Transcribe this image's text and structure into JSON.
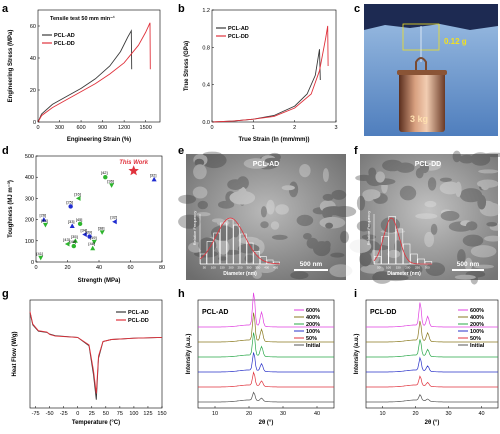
{
  "figure": {
    "panel_labels": [
      "a",
      "b",
      "c",
      "d",
      "e",
      "f",
      "g",
      "h",
      "i"
    ]
  },
  "chart_data": [
    {
      "panel": "a",
      "type": "line",
      "title": "Tensile test 50 mm min⁻¹",
      "xlabel": "Engineering Strain (%)",
      "ylabel": "Engineering Stress (MPa)",
      "xlim": [
        0,
        1700
      ],
      "ylim": [
        0,
        70
      ],
      "xticks": [
        "0",
        "300",
        "600",
        "900",
        "1200",
        "1500"
      ],
      "yticks": [
        "0",
        "20",
        "40",
        "60"
      ],
      "legend": "top-left",
      "series": [
        {
          "name": "PCL-AD",
          "color": "#3a3a3a",
          "x": [
            0,
            50,
            200,
            400,
            600,
            800,
            1000,
            1150,
            1250,
            1300,
            1305
          ],
          "y": [
            0,
            5,
            11,
            16,
            21,
            27,
            35,
            44,
            53,
            57,
            33
          ]
        },
        {
          "name": "PCL-DD",
          "color": "#e0323c",
          "x": [
            0,
            50,
            200,
            400,
            600,
            800,
            1000,
            1200,
            1400,
            1500,
            1560,
            1565
          ],
          "y": [
            0,
            4,
            9,
            14,
            19,
            24,
            30,
            37,
            48,
            56,
            62,
            33
          ]
        }
      ]
    },
    {
      "panel": "b",
      "type": "line",
      "xlabel": "True Strain (ln (mm/mm))",
      "ylabel": "True Stress (GPa)",
      "xlim": [
        0,
        3
      ],
      "ylim": [
        0,
        1.2
      ],
      "xticks": [
        "0",
        "1",
        "2",
        "3"
      ],
      "yticks": [
        "0.0",
        "0.4",
        "0.8",
        "1.2"
      ],
      "legend": "top-left",
      "series": [
        {
          "name": "PCL-AD",
          "color": "#3a3a3a",
          "x": [
            0,
            0.5,
            1,
            1.5,
            2,
            2.3,
            2.5,
            2.6,
            2.62
          ],
          "y": [
            0,
            0.01,
            0.03,
            0.07,
            0.17,
            0.3,
            0.5,
            0.78,
            0.45
          ]
        },
        {
          "name": "PCL-DD",
          "color": "#e0323c",
          "x": [
            0,
            0.5,
            1,
            1.5,
            2,
            2.4,
            2.6,
            2.75,
            2.8,
            2.81
          ],
          "y": [
            0,
            0.01,
            0.03,
            0.06,
            0.15,
            0.3,
            0.55,
            0.9,
            1.03,
            0.6
          ]
        }
      ]
    },
    {
      "panel": "d",
      "type": "scatter",
      "xlabel": "Strength (MPa)",
      "ylabel": "Toughness (MJ m⁻³)",
      "xlim": [
        0,
        80
      ],
      "ylim": [
        0,
        500
      ],
      "xticks": [
        "0",
        "20",
        "40",
        "60",
        "80"
      ],
      "yticks": [
        "0",
        "100",
        "200",
        "300",
        "400",
        "500"
      ],
      "highlight": {
        "label": "This Work",
        "x": 62,
        "y": 430,
        "color": "#e0323c"
      },
      "points": [
        {
          "x": 44,
          "y": 400,
          "ref": "[42]",
          "color": "#2db52d"
        },
        {
          "x": 75,
          "y": 390,
          "ref": "[32]",
          "color": "#1f2bd0"
        },
        {
          "x": 48,
          "y": 362,
          "ref": "[36]",
          "color": "#2db52d"
        },
        {
          "x": 27,
          "y": 300,
          "ref": "[16]",
          "color": "#2db52d"
        },
        {
          "x": 22,
          "y": 262,
          "ref": "[25]",
          "color": "#1f2bd0"
        },
        {
          "x": 5,
          "y": 200,
          "ref": "[26]",
          "color": "#1f2bd0"
        },
        {
          "x": 6,
          "y": 175,
          "ref": "[44]",
          "color": "#2db52d"
        },
        {
          "x": 50,
          "y": 190,
          "ref": "[32]",
          "color": "#1f2bd0"
        },
        {
          "x": 28,
          "y": 180,
          "ref": "[45]",
          "color": "#2db52d"
        },
        {
          "x": 23,
          "y": 170,
          "ref": "[33]",
          "color": "#1f2bd0"
        },
        {
          "x": 42,
          "y": 140,
          "ref": "[38]",
          "color": "#2db52d"
        },
        {
          "x": 31,
          "y": 130,
          "ref": "[34]",
          "color": "#1f2bd0"
        },
        {
          "x": 34,
          "y": 120,
          "ref": "[39]",
          "color": "#1f2bd0"
        },
        {
          "x": 25,
          "y": 100,
          "ref": "[35]",
          "color": "#2db52d"
        },
        {
          "x": 37,
          "y": 95,
          "ref": "[19]",
          "color": "#2db52d"
        },
        {
          "x": 20,
          "y": 85,
          "ref": "[43]",
          "color": "#2db52d"
        },
        {
          "x": 24,
          "y": 75,
          "ref": "[48]",
          "color": "#2db52d"
        },
        {
          "x": 36,
          "y": 65,
          "ref": "[48]",
          "color": "#2db52d"
        },
        {
          "x": 3,
          "y": 20,
          "ref": "[41]",
          "color": "#2db52d"
        }
      ]
    },
    {
      "panel": "g",
      "type": "line",
      "xlabel": "Temperature (°C)",
      "ylabel": "Heat Flow (W/g)",
      "xlim": [
        -85,
        150
      ],
      "xticks": [
        "-75",
        "-50",
        "-25",
        "0",
        "25",
        "50",
        "75",
        "100",
        "125",
        "150"
      ],
      "legend": "top-right",
      "series": [
        {
          "name": "PCL-AD",
          "color": "#3a3a3a",
          "x": [
            -85,
            -80,
            -70,
            -55,
            -50,
            -40,
            0,
            20,
            28,
            33,
            37,
            45,
            60,
            100,
            150
          ],
          "y": [
            0.9,
            0.6,
            0.45,
            0.42,
            0.38,
            0.34,
            0.3,
            0.1,
            -0.6,
            -1.2,
            -0.2,
            0.2,
            0.25,
            0.28,
            0.3
          ]
        },
        {
          "name": "PCL-DD",
          "color": "#e0323c",
          "x": [
            -85,
            -80,
            -70,
            -55,
            -50,
            -40,
            0,
            20,
            28,
            33,
            37,
            45,
            60,
            100,
            150
          ],
          "y": [
            0.92,
            0.62,
            0.46,
            0.43,
            0.37,
            0.33,
            0.3,
            0.12,
            -0.5,
            -1.05,
            -0.15,
            0.2,
            0.25,
            0.28,
            0.3
          ]
        }
      ]
    },
    {
      "panel": "h",
      "type": "line",
      "title": "PCL-AD",
      "xlabel": "2θ (°)",
      "ylabel": "Intensity (a.u.)",
      "xlim": [
        5,
        45
      ],
      "xticks": [
        "10",
        "20",
        "30",
        "40"
      ],
      "legend": "top-right",
      "series": [
        {
          "name": "Initial",
          "color": "#555555"
        },
        {
          "name": "50%",
          "color": "#e0323c"
        },
        {
          "name": "100%",
          "color": "#2a32c8"
        },
        {
          "name": "200%",
          "color": "#2aa84a"
        },
        {
          "name": "400%",
          "color": "#8a7a20"
        },
        {
          "name": "600%",
          "color": "#e040e0"
        }
      ],
      "peaks_2theta": [
        21.4,
        23.7
      ]
    },
    {
      "panel": "i",
      "type": "line",
      "title": "PCL-DD",
      "xlabel": "2θ (°)",
      "ylabel": "Intensity (a.u.)",
      "xlim": [
        5,
        45
      ],
      "xticks": [
        "10",
        "20",
        "30",
        "40"
      ],
      "legend": "top-right",
      "series": [
        {
          "name": "Initial",
          "color": "#555555"
        },
        {
          "name": "50%",
          "color": "#e0323c"
        },
        {
          "name": "100%",
          "color": "#2a32c8"
        },
        {
          "name": "200%",
          "color": "#2aa84a"
        },
        {
          "name": "400%",
          "color": "#8a7a20"
        },
        {
          "name": "600%",
          "color": "#e040e0"
        }
      ],
      "peaks_2theta": [
        21.4,
        23.7
      ]
    }
  ],
  "images": {
    "c": {
      "mass_label": "0.12 g",
      "load_label": "3 kg"
    },
    "e": {
      "title": "PCL-AD",
      "scale_bar": "500 nm",
      "inset_xlabel": "Diameter (nm)",
      "inset_ylabel": "Relative Frequency",
      "inset_xticks": [
        "50",
        "100",
        "150",
        "200",
        "250",
        "300",
        "350",
        "400",
        "450"
      ]
    },
    "f": {
      "title": "PCL-DD",
      "scale_bar": "500 nm",
      "inset_xlabel": "Diameter (nm)",
      "inset_ylabel": "Relative Frequency",
      "inset_xticks": [
        "50",
        "100",
        "150",
        "200",
        "250",
        "300"
      ]
    }
  }
}
